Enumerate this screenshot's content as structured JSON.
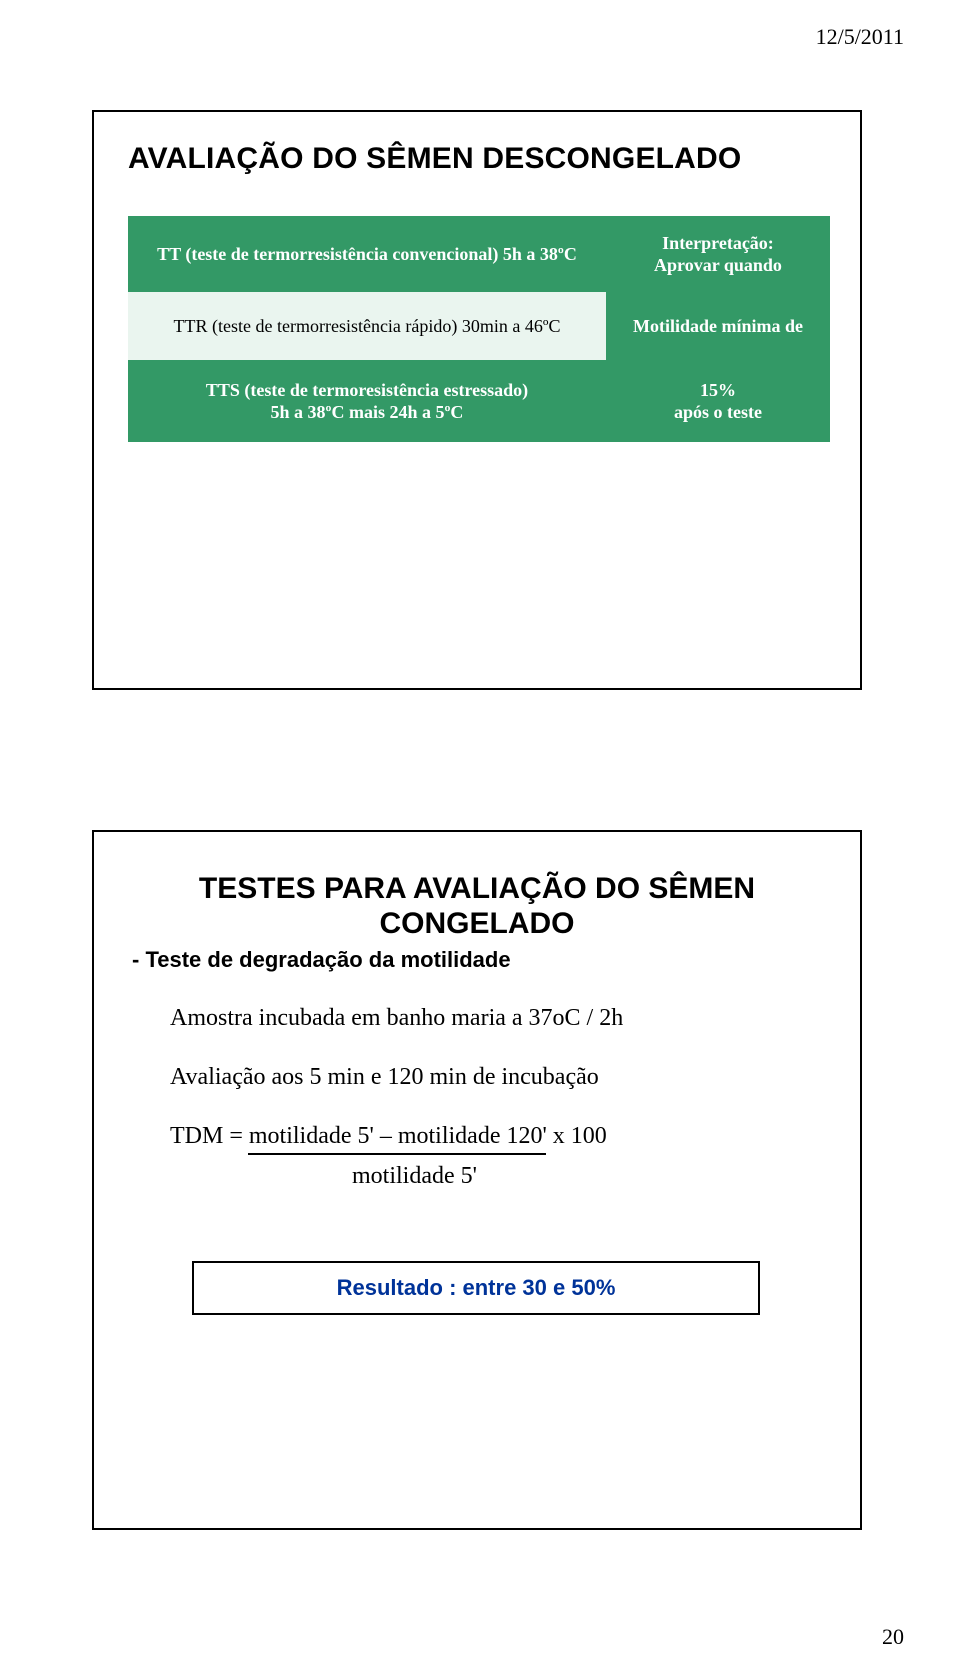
{
  "header": {
    "date": "12/5/2011"
  },
  "slide1": {
    "title": "AVALIAÇÃO DO SÊMEN DESCONGELADO",
    "left_rows": [
      "TT (teste de termorresistência convencional) 5h a 38ºC",
      "TTR (teste de termorresistência rápido) 30min a 46ºC",
      "TTS (teste de termoresistência estressado)\n5h a 38ºC mais 24h a 5ºC"
    ],
    "right_rows": [
      "Interpretação:\nAprovar quando",
      "Motilidade mínima de",
      "15%\napós o teste"
    ],
    "colors": {
      "green_bg": "#339966",
      "light_bg": "#eaf5ef",
      "green_text": "#ffffff"
    }
  },
  "slide2": {
    "title_line1": "TESTES PARA AVALIAÇÃO DO SÊMEN",
    "title_line2": "CONGELADO",
    "subhead": "- Teste de degradação da motilidade",
    "lines": [
      "Amostra incubada em banho maria a 37oC / 2h",
      "Avaliação aos 5 min e 120 min de incubação"
    ],
    "formula_top": "TDM = motilidade 5' – motilidade 120'   x  100",
    "formula_bottom": "motilidade 5'",
    "result": "Resultado : entre 30 e 50%",
    "result_color": "#003399"
  },
  "footer": {
    "page": "20"
  }
}
